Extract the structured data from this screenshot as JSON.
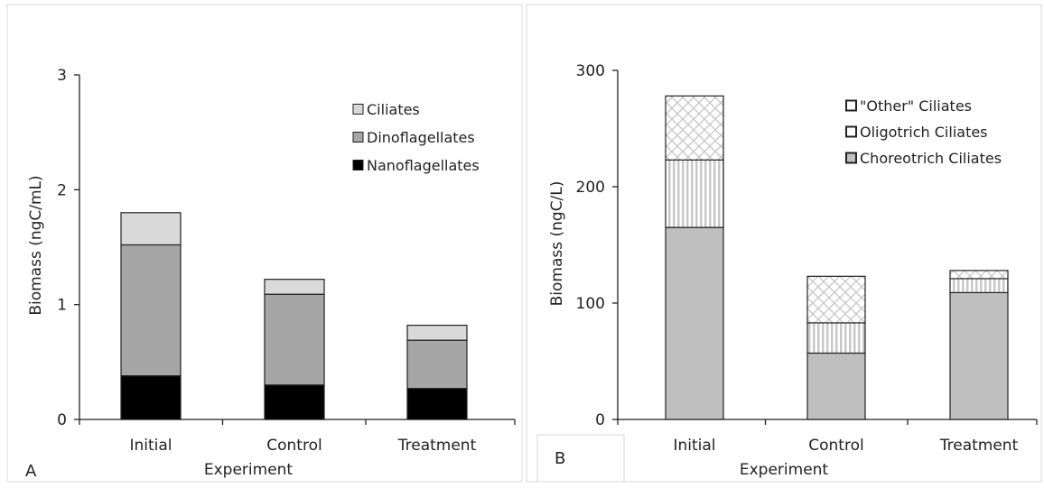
{
  "chart_data": [
    {
      "panel_label": "A",
      "type": "bar",
      "stacked": true,
      "categories": [
        "Initial",
        "Control",
        "Treatment"
      ],
      "xlabel": "Experiment",
      "ylabel": "Biomass (ngC/mL)",
      "ylim": [
        0,
        3
      ],
      "yticks": [
        "0",
        "1",
        "2",
        "3"
      ],
      "grid": false,
      "legend_position": "top-right",
      "series": [
        {
          "name": "Nanoflagellates",
          "values": [
            0.38,
            0.3,
            0.27
          ],
          "color": "#000000",
          "pattern": "solid"
        },
        {
          "name": "Dinoflagellates",
          "values": [
            1.14,
            0.79,
            0.42
          ],
          "color": "#a6a6a6",
          "pattern": "solid"
        },
        {
          "name": "Ciliates",
          "values": [
            0.28,
            0.13,
            0.13
          ],
          "color": "#d9d9d9",
          "pattern": "solid"
        }
      ],
      "legend_order": [
        "Ciliates",
        "Dinoflagellates",
        "Nanoflagellates"
      ]
    },
    {
      "panel_label": "B",
      "type": "bar",
      "stacked": true,
      "categories": [
        "Initial",
        "Control",
        "Treatment"
      ],
      "xlabel": "Experiment",
      "ylabel": "Biomass (ngC/L)",
      "ylim": [
        0,
        300
      ],
      "yticks": [
        "0",
        "100",
        "200",
        "300"
      ],
      "grid": false,
      "legend_position": "top-right",
      "series": [
        {
          "name": "Choreotrich Ciliates",
          "values": [
            165,
            57,
            109
          ],
          "color": "#bfbfbf",
          "pattern": "solid"
        },
        {
          "name": "Oligotrich Ciliates",
          "values": [
            58,
            26,
            12
          ],
          "color": "#c8c8c8",
          "pattern": "vertical-stripes"
        },
        {
          "name": "\"Other\" Ciliates",
          "values": [
            55,
            40,
            7
          ],
          "color": "#cccccc",
          "pattern": "crosshatch"
        }
      ],
      "legend_order": [
        "\"Other\" Ciliates",
        "Oligotrich Ciliates",
        "Choreotrich Ciliates"
      ]
    }
  ]
}
